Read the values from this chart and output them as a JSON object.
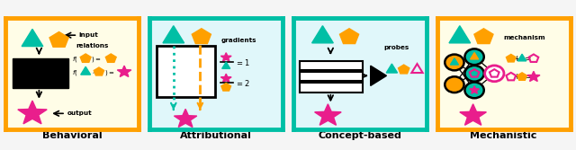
{
  "bg_color": "#F5F5F5",
  "teal": "#00BFA5",
  "orange": "#FFA000",
  "pink": "#E91E8C",
  "black": "#000000",
  "white": "#FFFFFF",
  "panel1_bg": "#FFFDE7",
  "panel2_bg": "#E0F7FA",
  "border1": "#FFA000",
  "border2": "#00BFA5",
  "labels": [
    "Behavioral",
    "Attributional",
    "Concept-based",
    "Mechanistic"
  ],
  "label_fontsize": 8
}
